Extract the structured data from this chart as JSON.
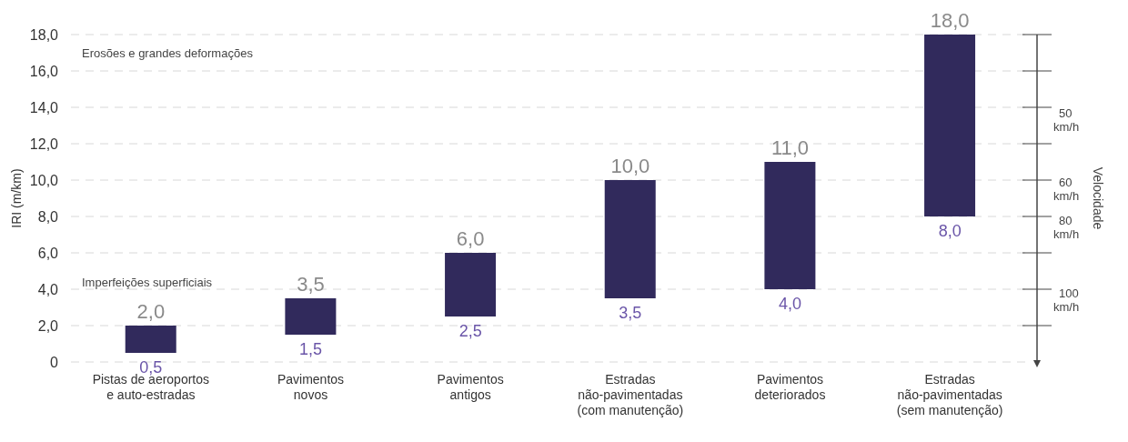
{
  "chart_data": {
    "type": "bar",
    "ylabel": "IRI (m/km)",
    "categories": [
      "Pistas de aeroportos\ne auto-estradas",
      "Pavimentos\nnovos",
      "Pavimentos\nantigos",
      "Estradas\nnão-pavimentadas\n(com manutenção)",
      "Pavimentos\ndeteriorados",
      "Estradas\nnão-pavimentadas\n(sem manutenção)"
    ],
    "base": [
      0.5,
      1.5,
      2.5,
      3.5,
      4,
      8
    ],
    "values": [
      1.5,
      2,
      3.5,
      6.5,
      7,
      10
    ],
    "color": "#312a5c",
    "ylim": [
      0,
      18
    ],
    "yticks": [
      0,
      {
        "value": 2,
        "label": "2,0"
      },
      {
        "value": 4,
        "label": "4,0"
      },
      {
        "value": 6,
        "label": "6,0"
      },
      {
        "value": 8,
        "label": "8,0"
      },
      {
        "value": 10,
        "label": "10,0"
      },
      {
        "value": 12,
        "label": "12,0"
      },
      {
        "value": 14,
        "label": "14,0"
      },
      {
        "value": 16,
        "label": "16,0"
      },
      {
        "value": 18,
        "label": "18,0"
      }
    ],
    "grid": "y",
    "legend": false,
    "annotations": [
      "Erosões e grandes deformações",
      "Imperfeições superficiais",
      "50 km/h",
      "60 km/h",
      "80 km/h",
      "100 km/h",
      "Velocidade",
      {
        "text": "2,0",
        "x": "Pistas de aeroportos\ne auto-estradas",
        "y": 2
      },
      {
        "text": "0,5",
        "x": "Pistas de aeroportos\ne auto-estradas",
        "y": 0.5
      },
      {
        "text": "3,5",
        "x": "Pavimentos\nnovos",
        "y": 3.5
      },
      {
        "text": "1,5",
        "x": "Pavimentos\nnovos",
        "y": 1.5
      },
      {
        "text": "6,0",
        "x": "Pavimentos\nantigos",
        "y": 6
      },
      {
        "text": "2,5",
        "x": "Pavimentos\nantigos",
        "y": 2.5
      },
      {
        "text": "10,0",
        "x": "Estradas\nnão-pavimentadas\n(com manutenção)",
        "y": 10
      },
      {
        "text": "3,5",
        "x": "Estradas\nnão-pavimentadas\n(com manutenção)",
        "y": 3.5
      },
      {
        "text": "11,0",
        "x": "Pavimentos\ndeteriorados",
        "y": 11
      },
      {
        "text": "4,0",
        "x": "Pavimentos\ndeteriorados",
        "y": 4
      },
      {
        "text": "18,0",
        "x": "Estradas\nnão-pavimentadas\n(sem manutenção)",
        "y": 18
      },
      {
        "text": "8,0",
        "x": "Estradas\nnão-pavimentadas\n(sem manutenção)",
        "y": 8
      }
    ]
  }
}
